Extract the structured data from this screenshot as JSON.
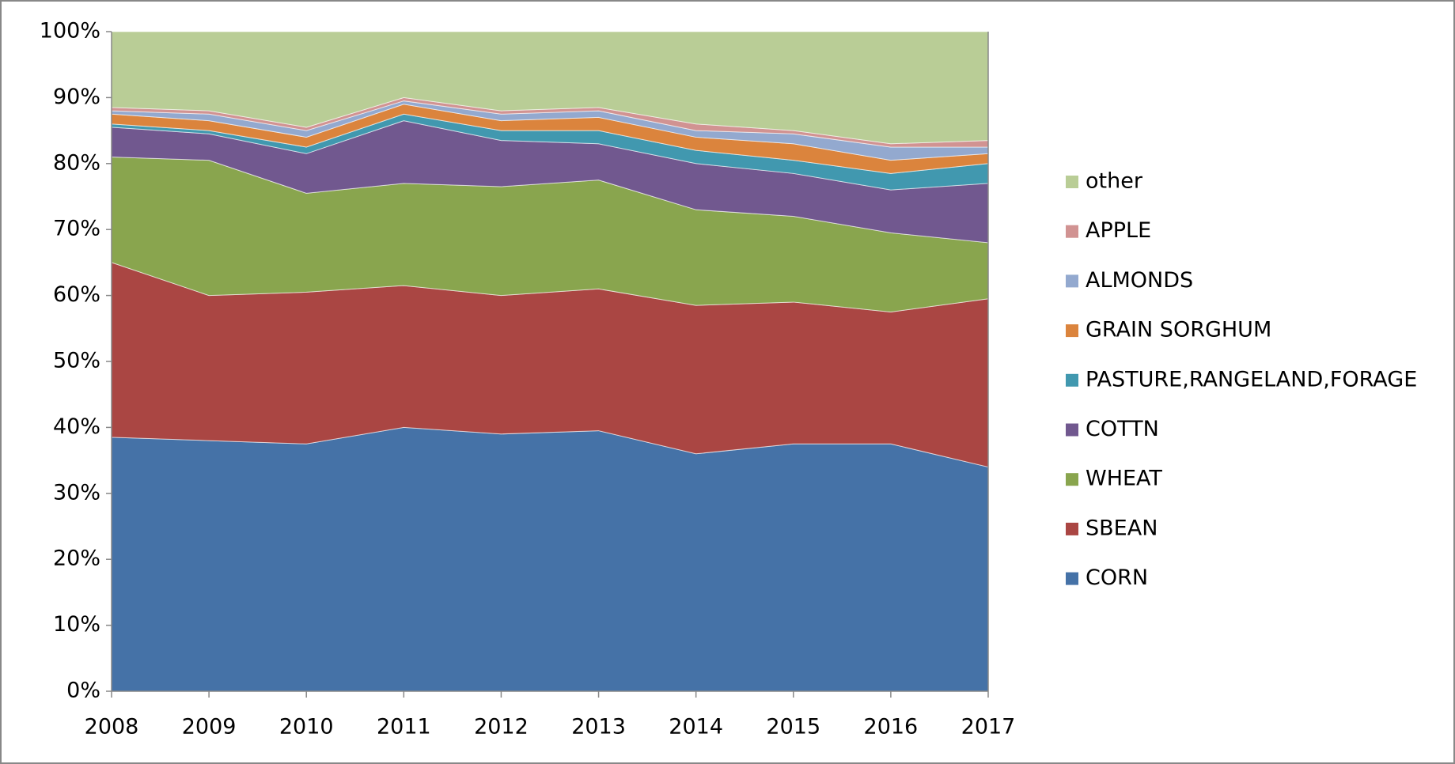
{
  "chart_data": {
    "type": "stacked-area-100",
    "categories": [
      "2008",
      "2009",
      "2010",
      "2011",
      "2012",
      "2013",
      "2014",
      "2015",
      "2016",
      "2017"
    ],
    "series": [
      {
        "name": "CORN",
        "color": "#4572a7",
        "values": [
          38.5,
          38,
          37.5,
          40,
          39,
          39.5,
          36,
          37.5,
          37.5,
          34
        ]
      },
      {
        "name": "SBEAN",
        "color": "#aa4643",
        "values": [
          26.5,
          22,
          23,
          21.5,
          21,
          21.5,
          22.5,
          21.5,
          20,
          25.5
        ]
      },
      {
        "name": "WHEAT",
        "color": "#89a54e",
        "values": [
          16,
          20.5,
          15,
          15.5,
          16.5,
          16.5,
          14.5,
          13,
          12,
          8.5
        ]
      },
      {
        "name": "COTTN",
        "color": "#71588f",
        "values": [
          4.5,
          4,
          6,
          9.5,
          7,
          5.5,
          7,
          6.5,
          6.5,
          9
        ]
      },
      {
        "name": "PASTURE,RANGELAND,FORAGE",
        "color": "#4198af",
        "values": [
          0.5,
          0.5,
          1,
          1,
          1.5,
          2,
          2,
          2,
          2.5,
          3
        ]
      },
      {
        "name": "GRAIN SORGHUM",
        "color": "#db843d",
        "values": [
          1.5,
          1.5,
          1.5,
          1.5,
          1.5,
          2,
          2,
          2.5,
          2,
          1.5
        ]
      },
      {
        "name": "ALMONDS",
        "color": "#93a9cf",
        "values": [
          0.5,
          1,
          1,
          0.5,
          1,
          1,
          1,
          1.5,
          2,
          1
        ]
      },
      {
        "name": "APPLE",
        "color": "#d19392",
        "values": [
          0.5,
          0.5,
          0.5,
          0.5,
          0.5,
          0.5,
          1,
          0.5,
          0.5,
          1
        ]
      },
      {
        "name": "other",
        "color": "#b9cd96",
        "values": [
          11.5,
          12,
          14.5,
          10,
          12,
          11.5,
          14,
          15,
          17,
          16.5
        ]
      }
    ],
    "ylim": [
      0,
      100
    ],
    "yticks": [
      {
        "value": 0,
        "label": "0%"
      },
      {
        "value": 10,
        "label": "10%"
      },
      {
        "value": 20,
        "label": "20%"
      },
      {
        "value": 30,
        "label": "30%"
      },
      {
        "value": 40,
        "label": "40%"
      },
      {
        "value": 50,
        "label": "50%"
      },
      {
        "value": 60,
        "label": "60%"
      },
      {
        "value": 70,
        "label": "70%"
      },
      {
        "value": 80,
        "label": "80%"
      },
      {
        "value": 90,
        "label": "90%"
      },
      {
        "value": 100,
        "label": "100%"
      }
    ],
    "grid": false,
    "legend": "right"
  }
}
